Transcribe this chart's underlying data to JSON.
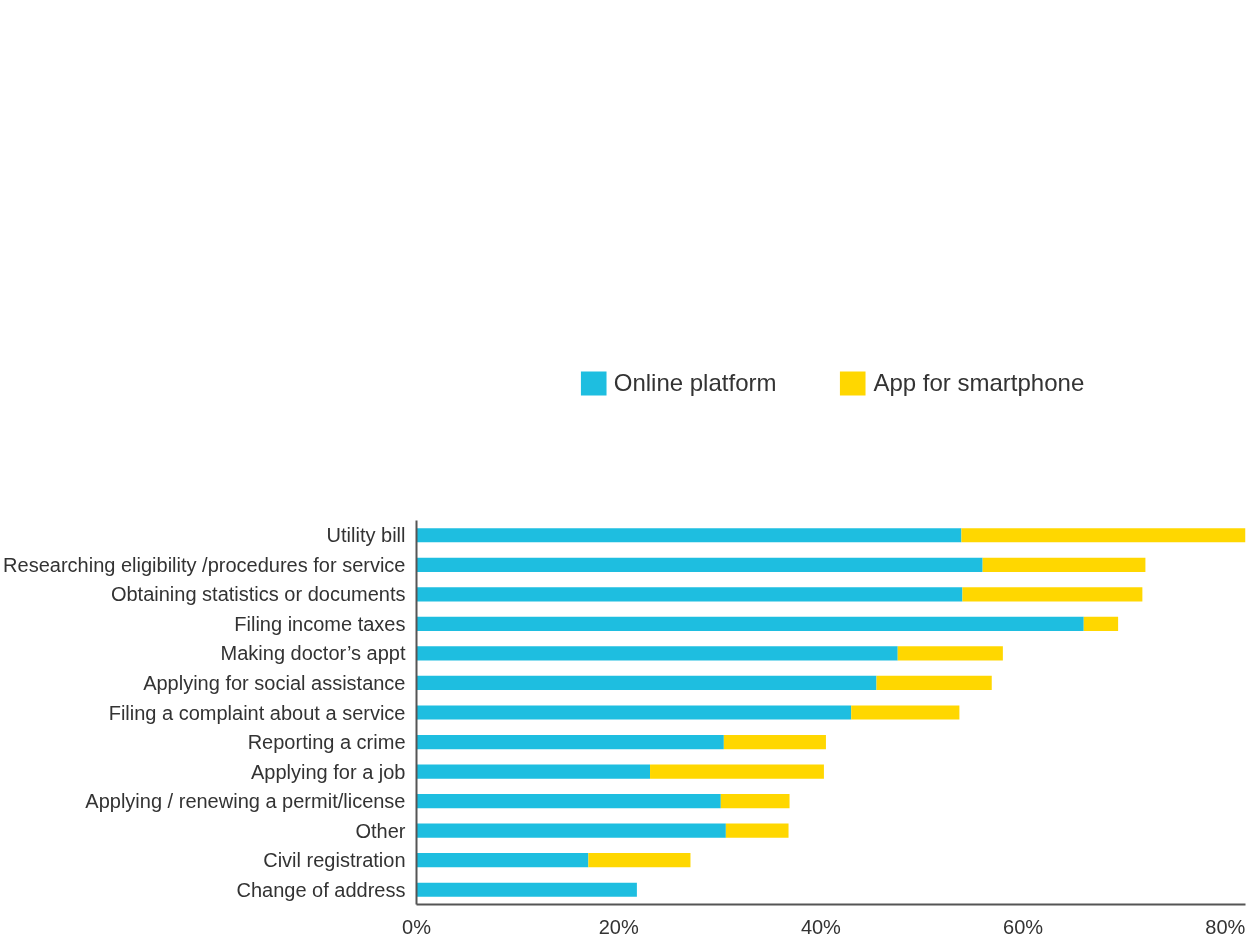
{
  "chart_data": {
    "type": "bar",
    "orientation": "horizontal",
    "stacked": true,
    "legend": "top",
    "grid": false,
    "categories": [
      "Utility bill",
      "Researching eligibility /procedures for service",
      "Obtaining statistics or documents",
      "Filing income taxes",
      "Making doctor’s appt",
      "Applying for social assistance",
      "Filing a complaint about a service",
      "Reporting a crime",
      "Applying for a job",
      "Applying / renewing a permit/license",
      "Other",
      "Civil registration",
      "Change of address"
    ],
    "series": [
      {
        "name": "Online platform",
        "color": "#1ebee0",
        "values": [
          53.9,
          56.0,
          54.0,
          66.0,
          47.6,
          45.5,
          43.0,
          30.4,
          23.1,
          30.1,
          30.6,
          17.0,
          21.8
        ]
      },
      {
        "name": "App for smartphone",
        "color": "#ffd700",
        "values": [
          28.1,
          16.1,
          17.8,
          3.4,
          10.4,
          11.4,
          10.7,
          10.1,
          17.2,
          6.8,
          6.2,
          10.1,
          0
        ]
      }
    ],
    "xlim": [
      0,
      82
    ],
    "xticks": [
      {
        "value": 0,
        "label": "0%"
      },
      {
        "value": 20,
        "label": "20%"
      },
      {
        "value": 40,
        "label": "40%"
      },
      {
        "value": 60,
        "label": "60%"
      },
      {
        "value": 80,
        "label": "80%"
      }
    ]
  }
}
